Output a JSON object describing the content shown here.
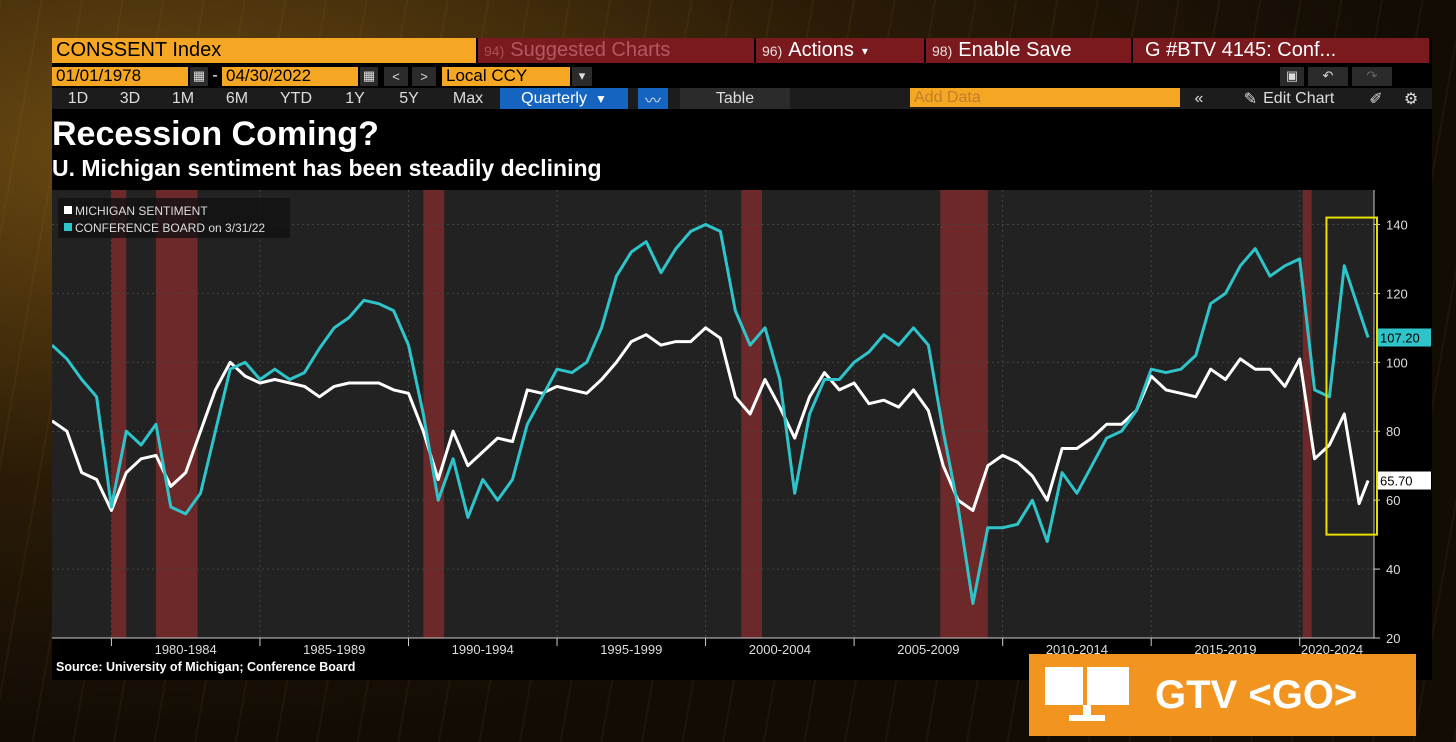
{
  "toolbar": {
    "ticker": "CONSSENT Index",
    "suggested": "Suggested Charts",
    "suggested_num": "94)",
    "actions": "Actions",
    "actions_num": "96)",
    "enable_save": "Enable Save",
    "enable_save_num": "98)",
    "graph_ref": "G #BTV 4145: Conf...",
    "start_date": "01/01/1978",
    "end_date": "04/30/2022",
    "dash": "-",
    "currency": "Local CCY",
    "periods": [
      "1D",
      "3D",
      "1M",
      "6M",
      "YTD",
      "1Y",
      "5Y",
      "Max"
    ],
    "frequency": "Quarterly",
    "table": "Table",
    "add_data_placeholder": "Add Data",
    "edit_chart": "Edit Chart"
  },
  "title": "Recession Coming?",
  "subtitle": "U. Michigan sentiment has been steadily declining",
  "source": "Source: University of Michigan; Conference Board",
  "overlay": {
    "label": "GTV <GO>"
  },
  "colors": {
    "michigan": "#ffffff",
    "conference": "#2ec4c9",
    "recession": "#7a2a2a",
    "highlight": "#e8e000",
    "ticker_bg": "#f5a623",
    "gtv_bg": "#f19420"
  },
  "chart_data": {
    "type": "line",
    "x_unit": "year",
    "xlim": [
      1978,
      2022.5
    ],
    "ylim": [
      20,
      150
    ],
    "yticks": [
      20,
      40,
      60,
      80,
      100,
      120,
      140
    ],
    "xlabels": [
      "1980-1984",
      "1985-1989",
      "1990-1994",
      "1995-1999",
      "2000-2004",
      "2005-2009",
      "2010-2014",
      "2015-2019",
      "2020-2024"
    ],
    "grid": true,
    "legend_position": "top-left",
    "recessions": [
      [
        1980.0,
        1980.5
      ],
      [
        1981.5,
        1982.9
      ],
      [
        1990.5,
        1991.2
      ],
      [
        2001.2,
        2001.9
      ],
      [
        2007.9,
        2009.5
      ],
      [
        2020.1,
        2020.4
      ]
    ],
    "highlight_range": [
      2020.9,
      2022.6
    ],
    "series": [
      {
        "name": "MICHIGAN SENTIMENT",
        "last_value": "65.70",
        "points": [
          [
            1978.0,
            83
          ],
          [
            1978.5,
            80
          ],
          [
            1979.0,
            68
          ],
          [
            1979.5,
            66
          ],
          [
            1980.0,
            57
          ],
          [
            1980.5,
            68
          ],
          [
            1981.0,
            72
          ],
          [
            1981.5,
            73
          ],
          [
            1982.0,
            64
          ],
          [
            1982.5,
            68
          ],
          [
            1983.0,
            80
          ],
          [
            1983.5,
            92
          ],
          [
            1984.0,
            100
          ],
          [
            1984.5,
            96
          ],
          [
            1985.0,
            94
          ],
          [
            1985.5,
            95
          ],
          [
            1986.0,
            94
          ],
          [
            1986.5,
            93
          ],
          [
            1987.0,
            90
          ],
          [
            1987.5,
            93
          ],
          [
            1988.0,
            94
          ],
          [
            1988.5,
            94
          ],
          [
            1989.0,
            94
          ],
          [
            1989.5,
            92
          ],
          [
            1990.0,
            91
          ],
          [
            1990.5,
            80
          ],
          [
            1991.0,
            66
          ],
          [
            1991.5,
            80
          ],
          [
            1992.0,
            70
          ],
          [
            1992.5,
            74
          ],
          [
            1993.0,
            78
          ],
          [
            1993.5,
            77
          ],
          [
            1994.0,
            92
          ],
          [
            1994.5,
            91
          ],
          [
            1995.0,
            93
          ],
          [
            1995.5,
            92
          ],
          [
            1996.0,
            91
          ],
          [
            1996.5,
            95
          ],
          [
            1997.0,
            100
          ],
          [
            1997.5,
            106
          ],
          [
            1998.0,
            108
          ],
          [
            1998.5,
            105
          ],
          [
            1999.0,
            106
          ],
          [
            1999.5,
            106
          ],
          [
            2000.0,
            110
          ],
          [
            2000.5,
            107
          ],
          [
            2001.0,
            90
          ],
          [
            2001.5,
            85
          ],
          [
            2002.0,
            95
          ],
          [
            2002.5,
            87
          ],
          [
            2003.0,
            78
          ],
          [
            2003.5,
            90
          ],
          [
            2004.0,
            97
          ],
          [
            2004.5,
            92
          ],
          [
            2005.0,
            94
          ],
          [
            2005.5,
            88
          ],
          [
            2006.0,
            89
          ],
          [
            2006.5,
            87
          ],
          [
            2007.0,
            92
          ],
          [
            2007.5,
            86
          ],
          [
            2008.0,
            70
          ],
          [
            2008.5,
            60
          ],
          [
            2009.0,
            57
          ],
          [
            2009.5,
            70
          ],
          [
            2010.0,
            73
          ],
          [
            2010.5,
            71
          ],
          [
            2011.0,
            67
          ],
          [
            2011.5,
            60
          ],
          [
            2012.0,
            75
          ],
          [
            2012.5,
            75
          ],
          [
            2013.0,
            78
          ],
          [
            2013.5,
            82
          ],
          [
            2014.0,
            82
          ],
          [
            2014.5,
            86
          ],
          [
            2015.0,
            96
          ],
          [
            2015.5,
            92
          ],
          [
            2016.0,
            91
          ],
          [
            2016.5,
            90
          ],
          [
            2017.0,
            98
          ],
          [
            2017.5,
            95
          ],
          [
            2018.0,
            101
          ],
          [
            2018.5,
            98
          ],
          [
            2019.0,
            98
          ],
          [
            2019.5,
            93
          ],
          [
            2020.0,
            101
          ],
          [
            2020.5,
            72
          ],
          [
            2021.0,
            76
          ],
          [
            2021.5,
            85
          ],
          [
            2022.0,
            59
          ],
          [
            2022.3,
            65.7
          ]
        ]
      },
      {
        "name": "CONFERENCE BOARD on 3/31/22",
        "last_value": "107.20",
        "points": [
          [
            1978.0,
            105
          ],
          [
            1978.5,
            101
          ],
          [
            1979.0,
            95
          ],
          [
            1979.5,
            90
          ],
          [
            1980.0,
            58
          ],
          [
            1980.5,
            80
          ],
          [
            1981.0,
            76
          ],
          [
            1981.5,
            82
          ],
          [
            1982.0,
            58
          ],
          [
            1982.5,
            56
          ],
          [
            1983.0,
            62
          ],
          [
            1983.5,
            80
          ],
          [
            1984.0,
            98
          ],
          [
            1984.5,
            100
          ],
          [
            1985.0,
            95
          ],
          [
            1985.5,
            98
          ],
          [
            1986.0,
            95
          ],
          [
            1986.5,
            97
          ],
          [
            1987.0,
            104
          ],
          [
            1987.5,
            110
          ],
          [
            1988.0,
            113
          ],
          [
            1988.5,
            118
          ],
          [
            1989.0,
            117
          ],
          [
            1989.5,
            115
          ],
          [
            1990.0,
            105
          ],
          [
            1990.5,
            85
          ],
          [
            1991.0,
            60
          ],
          [
            1991.5,
            72
          ],
          [
            1992.0,
            55
          ],
          [
            1992.5,
            66
          ],
          [
            1993.0,
            60
          ],
          [
            1993.5,
            66
          ],
          [
            1994.0,
            82
          ],
          [
            1994.5,
            90
          ],
          [
            1995.0,
            98
          ],
          [
            1995.5,
            97
          ],
          [
            1996.0,
            100
          ],
          [
            1996.5,
            110
          ],
          [
            1997.0,
            125
          ],
          [
            1997.5,
            132
          ],
          [
            1998.0,
            135
          ],
          [
            1998.5,
            126
          ],
          [
            1999.0,
            133
          ],
          [
            1999.5,
            138
          ],
          [
            2000.0,
            140
          ],
          [
            2000.5,
            138
          ],
          [
            2001.0,
            115
          ],
          [
            2001.5,
            105
          ],
          [
            2002.0,
            110
          ],
          [
            2002.5,
            95
          ],
          [
            2003.0,
            62
          ],
          [
            2003.5,
            85
          ],
          [
            2004.0,
            95
          ],
          [
            2004.5,
            95
          ],
          [
            2005.0,
            100
          ],
          [
            2005.5,
            103
          ],
          [
            2006.0,
            108
          ],
          [
            2006.5,
            105
          ],
          [
            2007.0,
            110
          ],
          [
            2007.5,
            105
          ],
          [
            2008.0,
            80
          ],
          [
            2008.5,
            58
          ],
          [
            2009.0,
            30
          ],
          [
            2009.5,
            52
          ],
          [
            2010.0,
            52
          ],
          [
            2010.5,
            53
          ],
          [
            2011.0,
            60
          ],
          [
            2011.5,
            48
          ],
          [
            2012.0,
            68
          ],
          [
            2012.5,
            62
          ],
          [
            2013.0,
            70
          ],
          [
            2013.5,
            78
          ],
          [
            2014.0,
            80
          ],
          [
            2014.5,
            86
          ],
          [
            2015.0,
            98
          ],
          [
            2015.5,
            97
          ],
          [
            2016.0,
            98
          ],
          [
            2016.5,
            102
          ],
          [
            2017.0,
            117
          ],
          [
            2017.5,
            120
          ],
          [
            2018.0,
            128
          ],
          [
            2018.5,
            133
          ],
          [
            2019.0,
            125
          ],
          [
            2019.5,
            128
          ],
          [
            2020.0,
            130
          ],
          [
            2020.5,
            92
          ],
          [
            2021.0,
            90
          ],
          [
            2021.5,
            128
          ],
          [
            2022.0,
            115
          ],
          [
            2022.3,
            107.2
          ]
        ]
      }
    ]
  }
}
